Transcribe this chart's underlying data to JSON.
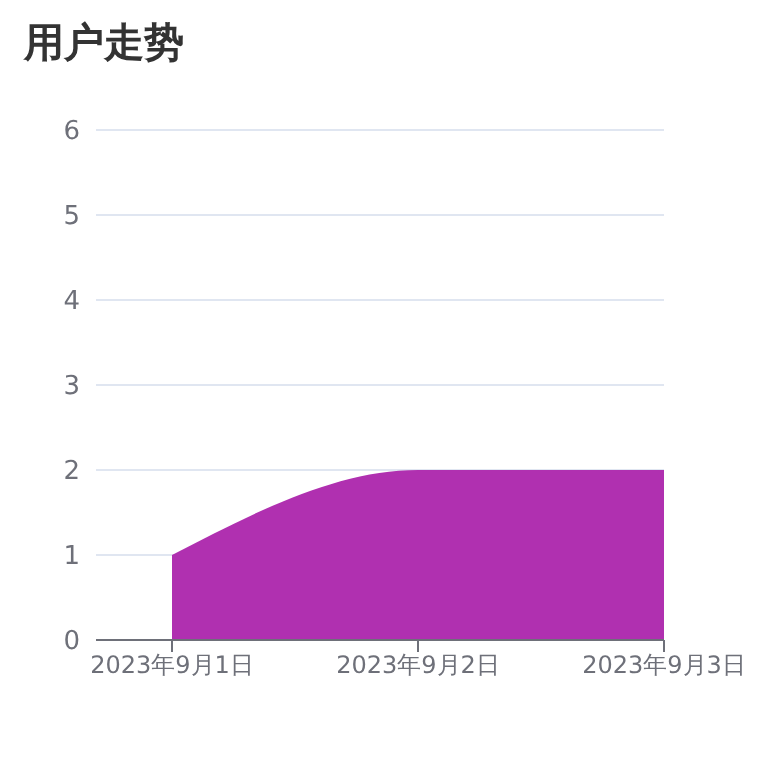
{
  "chart_data": {
    "type": "area",
    "title": "用户走势",
    "categories": [
      "2023年9月1日",
      "2023年9月2日",
      "2023年9月3日"
    ],
    "series": [
      {
        "color": "#b030b0",
        "values": [
          1,
          2,
          2
        ]
      }
    ],
    "ylim": [
      0,
      6
    ],
    "yticks": [
      0,
      1,
      2,
      3,
      4,
      5,
      6
    ],
    "grid": "y",
    "legend": false
  }
}
